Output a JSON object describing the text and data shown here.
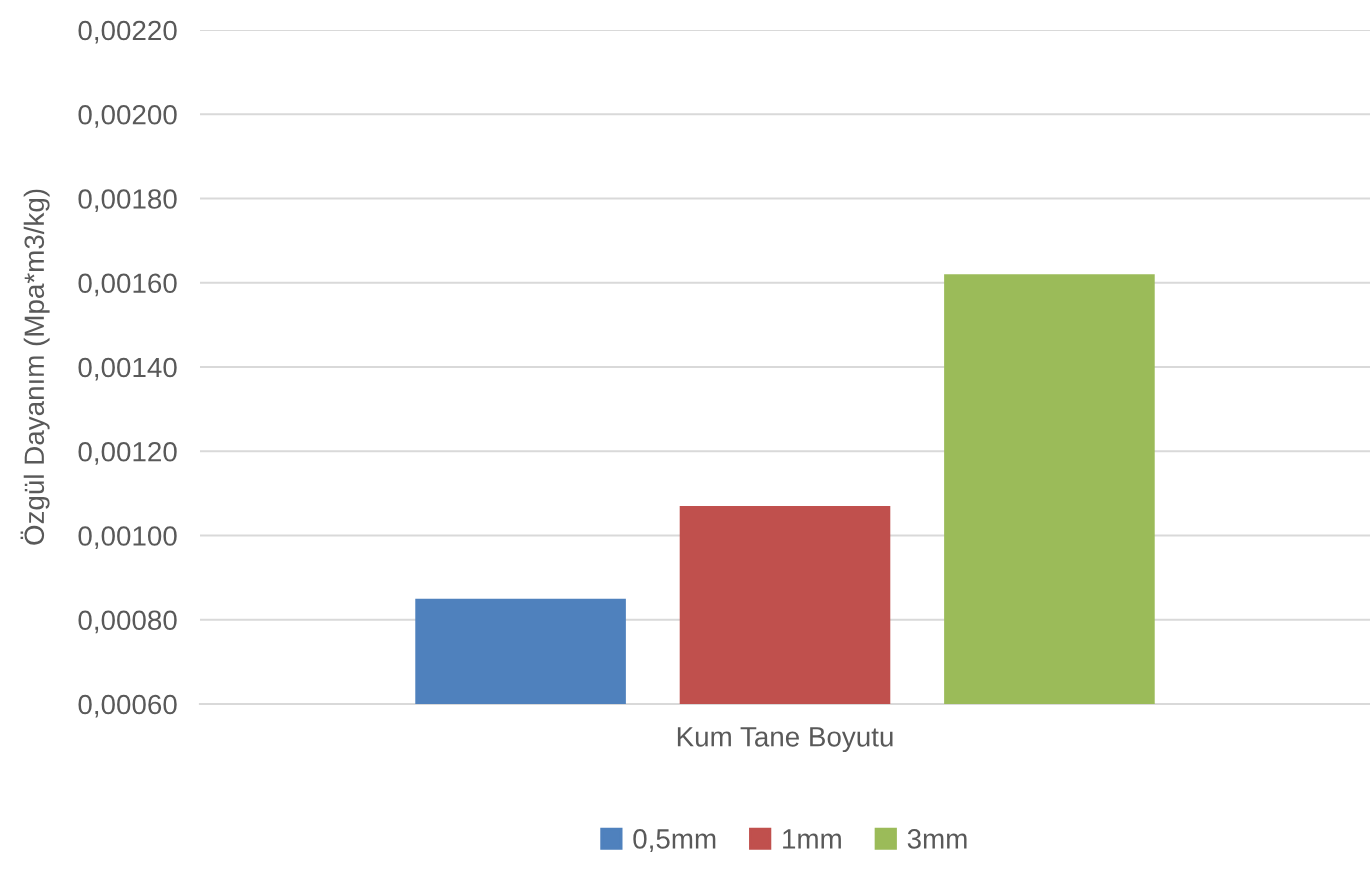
{
  "chart_data": {
    "type": "bar",
    "ylabel": "Özgül Dayanım (Mpa*m3/kg)",
    "categories": [
      "Kum Tane Boyutu"
    ],
    "series": [
      {
        "name": "0,5mm",
        "color": "#4f81bd",
        "values": [
          0.00085
        ]
      },
      {
        "name": "1mm",
        "color": "#c0504d",
        "values": [
          0.00107
        ]
      },
      {
        "name": "3mm",
        "color": "#9bbb59",
        "values": [
          0.00162
        ]
      }
    ],
    "ylim": [
      0.0006,
      0.0022
    ],
    "yticks": [
      {
        "value": 0.0006,
        "label": "0,00060"
      },
      {
        "value": 0.0008,
        "label": "0,00080"
      },
      {
        "value": 0.001,
        "label": "0,00100"
      },
      {
        "value": 0.0012,
        "label": "0,00120"
      },
      {
        "value": 0.0014,
        "label": "0,00140"
      },
      {
        "value": 0.0016,
        "label": "0,00160"
      },
      {
        "value": 0.0018,
        "label": "0,00180"
      },
      {
        "value": 0.002,
        "label": "0,00200"
      },
      {
        "value": 0.0022,
        "label": "0,00220"
      }
    ],
    "grid": "y",
    "legend": "bottom"
  }
}
